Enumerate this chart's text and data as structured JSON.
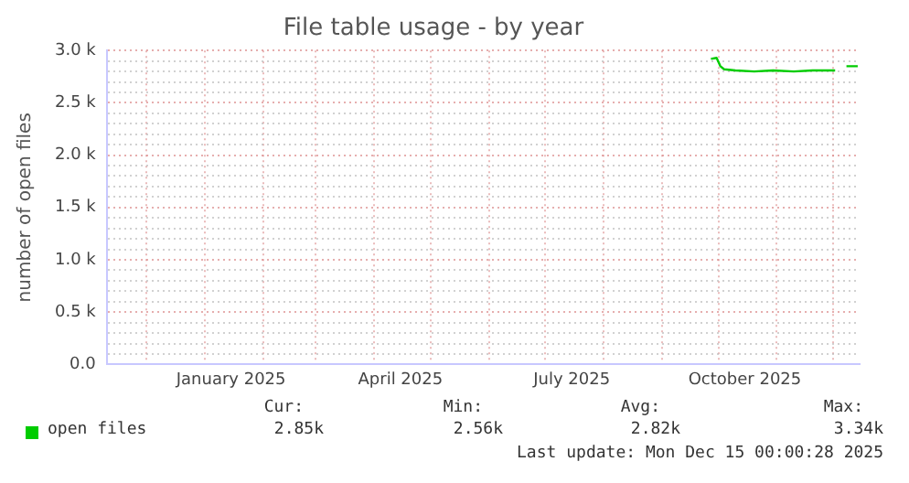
{
  "chart_data": {
    "type": "line",
    "title": "File table usage - by year",
    "ylabel": "number of open files",
    "xlim": [
      "2024-11-10",
      "2025-12-15"
    ],
    "xticks": [
      {
        "value": "2024-12-01",
        "label": null
      },
      {
        "value": "2025-01-01",
        "label": null
      },
      {
        "value": "2025-01-15",
        "label": "January 2025"
      },
      {
        "value": "2025-02-01",
        "label": null
      },
      {
        "value": "2025-03-01",
        "label": null
      },
      {
        "value": "2025-04-01",
        "label": null
      },
      {
        "value": "2025-04-15",
        "label": "April 2025"
      },
      {
        "value": "2025-05-01",
        "label": null
      },
      {
        "value": "2025-06-01",
        "label": null
      },
      {
        "value": "2025-07-01",
        "label": null
      },
      {
        "value": "2025-07-15",
        "label": "July 2025"
      },
      {
        "value": "2025-08-01",
        "label": null
      },
      {
        "value": "2025-09-01",
        "label": null
      },
      {
        "value": "2025-10-01",
        "label": null
      },
      {
        "value": "2025-10-15",
        "label": "October 2025"
      },
      {
        "value": "2025-11-01",
        "label": null
      },
      {
        "value": "2025-12-01",
        "label": null
      }
    ],
    "ylim": [
      0,
      3000
    ],
    "yticks": [
      {
        "value": 0,
        "label": "0.0"
      },
      {
        "value": 100,
        "label": null
      },
      {
        "value": 200,
        "label": null
      },
      {
        "value": 300,
        "label": null
      },
      {
        "value": 400,
        "label": null
      },
      {
        "value": 500,
        "label": "0.5 k"
      },
      {
        "value": 600,
        "label": null
      },
      {
        "value": 700,
        "label": null
      },
      {
        "value": 800,
        "label": null
      },
      {
        "value": 900,
        "label": null
      },
      {
        "value": 1000,
        "label": "1.0 k"
      },
      {
        "value": 1100,
        "label": null
      },
      {
        "value": 1200,
        "label": null
      },
      {
        "value": 1300,
        "label": null
      },
      {
        "value": 1400,
        "label": null
      },
      {
        "value": 1500,
        "label": "1.5 k"
      },
      {
        "value": 1600,
        "label": null
      },
      {
        "value": 1700,
        "label": null
      },
      {
        "value": 1800,
        "label": null
      },
      {
        "value": 1900,
        "label": null
      },
      {
        "value": 2000,
        "label": "2.0 k"
      },
      {
        "value": 2100,
        "label": null
      },
      {
        "value": 2200,
        "label": null
      },
      {
        "value": 2300,
        "label": null
      },
      {
        "value": 2400,
        "label": null
      },
      {
        "value": 2500,
        "label": "2.5 k"
      },
      {
        "value": 2600,
        "label": null
      },
      {
        "value": 2700,
        "label": null
      },
      {
        "value": 2800,
        "label": null
      },
      {
        "value": 2900,
        "label": null
      },
      {
        "value": 3000,
        "label": "3.0 k"
      }
    ],
    "grid": true,
    "legend": "bottom",
    "marker": "none",
    "line_style": "solid",
    "series": [
      {
        "name": "open files",
        "color": "#00cc00",
        "x": [
          "2025-09-27",
          "2025-09-30",
          "2025-10-02",
          "2025-10-04",
          "2025-10-10",
          "2025-10-20",
          "2025-10-30",
          "2025-11-10",
          "2025-11-20",
          "2025-12-02",
          "2025-12-05",
          "2025-12-08",
          "2025-12-14"
        ],
        "values": [
          2920,
          2930,
          2850,
          2820,
          2810,
          2800,
          2810,
          2800,
          2810,
          2810,
          null,
          2850,
          2850
        ]
      }
    ],
    "annotations": [
      "Cur:",
      "2.85k",
      "Min:",
      "2.56k",
      "Avg:",
      "2.82k",
      "Max:",
      "3.34k",
      "Last update: Mon Dec 15 00:00:28 2025"
    ]
  }
}
